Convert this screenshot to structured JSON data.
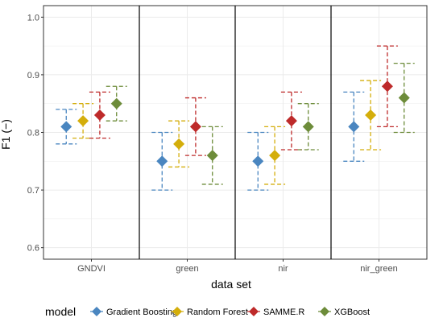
{
  "chart_data": {
    "type": "scatter",
    "title": "",
    "xlabel": "data set",
    "ylabel": "F1 (−)",
    "categories": [
      "GNDVI",
      "green",
      "nir",
      "nir_green"
    ],
    "ylim": [
      0.58,
      1.02
    ],
    "yticks": [
      "0.6",
      "0.7",
      "0.8",
      "0.9",
      "1.0"
    ],
    "grid": true,
    "legend": {
      "title": "model",
      "position": "bottom"
    },
    "series": [
      {
        "name": "Gradient Boosting",
        "color": "#4a86c0",
        "values": [
          0.81,
          0.75,
          0.75,
          0.81
        ],
        "lower": [
          0.78,
          0.7,
          0.7,
          0.75
        ],
        "upper": [
          0.84,
          0.8,
          0.8,
          0.87
        ]
      },
      {
        "name": "Random Forest",
        "color": "#d4ae0b",
        "values": [
          0.82,
          0.78,
          0.76,
          0.83
        ],
        "lower": [
          0.79,
          0.74,
          0.71,
          0.77
        ],
        "upper": [
          0.85,
          0.82,
          0.81,
          0.89
        ]
      },
      {
        "name": "SAMME.R",
        "color": "#be2a2a",
        "values": [
          0.83,
          0.81,
          0.82,
          0.88
        ],
        "lower": [
          0.79,
          0.76,
          0.77,
          0.81
        ],
        "upper": [
          0.87,
          0.86,
          0.87,
          0.95
        ]
      },
      {
        "name": "XGBoost",
        "color": "#6d8c3a",
        "values": [
          0.85,
          0.76,
          0.81,
          0.86
        ],
        "lower": [
          0.82,
          0.71,
          0.77,
          0.8
        ],
        "upper": [
          0.88,
          0.81,
          0.85,
          0.92
        ]
      }
    ]
  }
}
